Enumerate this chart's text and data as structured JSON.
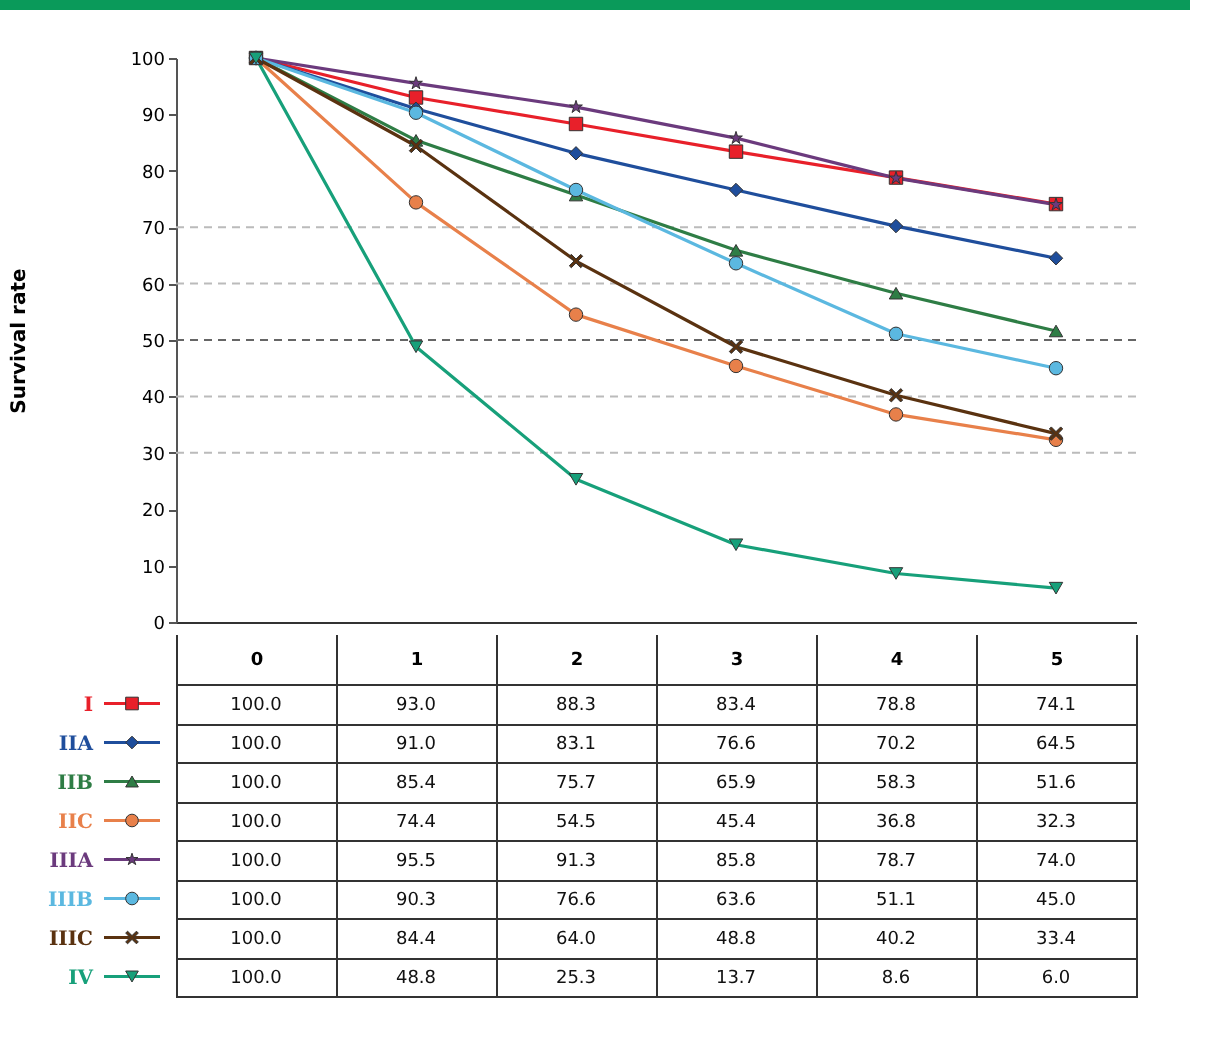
{
  "chart_data": {
    "type": "line",
    "ylabel": "Survival rate",
    "categories": [
      "0",
      "1",
      "2",
      "3",
      "4",
      "5"
    ],
    "ylim": [
      0,
      100
    ],
    "yticks": [
      0,
      10,
      20,
      30,
      40,
      50,
      60,
      70,
      80,
      90,
      100
    ],
    "grid": false,
    "legend": "bottom",
    "ref_lines": [
      {
        "axis": "y",
        "value": 30,
        "color": "#bbbbbb",
        "line_style": "dashed"
      },
      {
        "axis": "y",
        "value": 40,
        "color": "#bbbbbb",
        "line_style": "dashed"
      },
      {
        "axis": "y",
        "value": 50,
        "color": "#666666",
        "line_style": "dashed"
      },
      {
        "axis": "y",
        "value": 60,
        "color": "#bbbbbb",
        "line_style": "dashed"
      },
      {
        "axis": "y",
        "value": 70,
        "color": "#bbbbbb",
        "line_style": "dashed"
      }
    ],
    "series": [
      {
        "name": "I",
        "color": "#e8202a",
        "marker": "square",
        "values": [
          100.0,
          93.0,
          88.3,
          83.4,
          78.8,
          74.1
        ],
        "value_labels": [
          "100.0",
          "93.0",
          "88.3",
          "83.4",
          "78.8",
          "74.1"
        ]
      },
      {
        "name": "IIA",
        "color": "#1f4e9c",
        "marker": "diamond",
        "values": [
          100.0,
          91.0,
          83.1,
          76.6,
          70.2,
          64.5
        ],
        "value_labels": [
          "100.0",
          "91.0",
          "83.1",
          "76.6",
          "70.2",
          "64.5"
        ]
      },
      {
        "name": "IIB",
        "color": "#2e7d45",
        "marker": "triangle",
        "values": [
          100.0,
          85.4,
          75.7,
          65.9,
          58.3,
          51.6
        ],
        "value_labels": [
          "100.0",
          "85.4",
          "75.7",
          "65.9",
          "58.3",
          "51.6"
        ]
      },
      {
        "name": "IIC",
        "color": "#e8804a",
        "marker": "circle",
        "values": [
          100.0,
          74.4,
          54.5,
          45.4,
          36.8,
          32.3
        ],
        "value_labels": [
          "100.0",
          "74.4",
          "54.5",
          "45.4",
          "36.8",
          "32.3"
        ]
      },
      {
        "name": "IIIA",
        "color": "#6b3a7d",
        "marker": "star",
        "values": [
          100.0,
          95.5,
          91.3,
          85.8,
          78.7,
          74.0
        ],
        "value_labels": [
          "100.0",
          "95.5",
          "91.3",
          "85.8",
          "78.7",
          "74.0"
        ]
      },
      {
        "name": "IIIB",
        "color": "#5bb8e0",
        "marker": "circle",
        "values": [
          100.0,
          90.3,
          76.6,
          63.6,
          51.1,
          45.0
        ],
        "value_labels": [
          "100.0",
          "90.3",
          "76.6",
          "63.6",
          "51.1",
          "45.0"
        ]
      },
      {
        "name": "IIIC",
        "color": "#5a3210",
        "marker": "cross",
        "values": [
          100.0,
          84.4,
          64.0,
          48.8,
          40.2,
          33.4
        ],
        "value_labels": [
          "100.0",
          "84.4",
          "64.0",
          "48.8",
          "40.2",
          "33.4"
        ]
      },
      {
        "name": "IV",
        "color": "#17a07a",
        "marker": "triangle-down",
        "values": [
          100.0,
          48.8,
          25.3,
          13.7,
          8.6,
          6.0
        ],
        "value_labels": [
          "100.0",
          "48.8",
          "25.3",
          "13.7",
          "8.6",
          "6.0"
        ]
      }
    ]
  }
}
